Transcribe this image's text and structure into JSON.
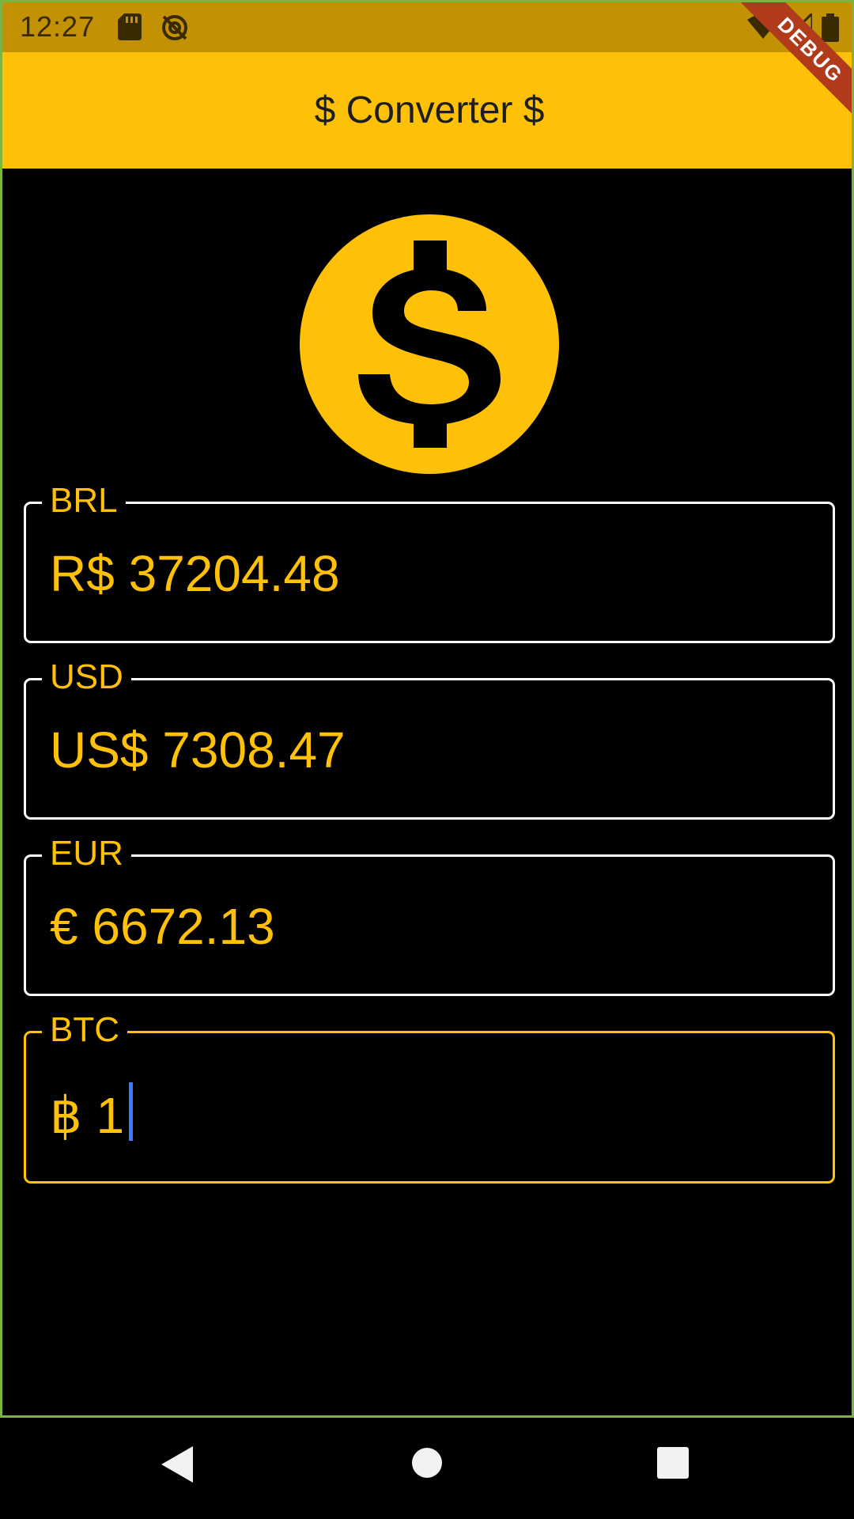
{
  "status_bar": {
    "time": "12:27",
    "icons": [
      "sd-card-icon",
      "sync-disabled-icon",
      "wifi-icon",
      "signal-icon",
      "battery-icon"
    ]
  },
  "debug_banner": "DEBUG",
  "app_bar": {
    "title": "$ Converter $",
    "color": "#ffc107"
  },
  "logo_icon": "dollar-coin-icon",
  "fields": [
    {
      "label": "BRL",
      "value": "R$ 37204.48",
      "focused": false
    },
    {
      "label": "USD",
      "value": "US$ 7308.47",
      "focused": false
    },
    {
      "label": "EUR",
      "value": "€ 6672.13",
      "focused": false
    },
    {
      "label": "BTC",
      "value": "฿ 1",
      "focused": true
    }
  ],
  "nav_bar": {
    "icons": [
      "back-icon",
      "home-icon",
      "recents-icon"
    ]
  },
  "colors": {
    "accent": "#ffc107",
    "background": "#000000",
    "status_bar": "#c29204"
  }
}
